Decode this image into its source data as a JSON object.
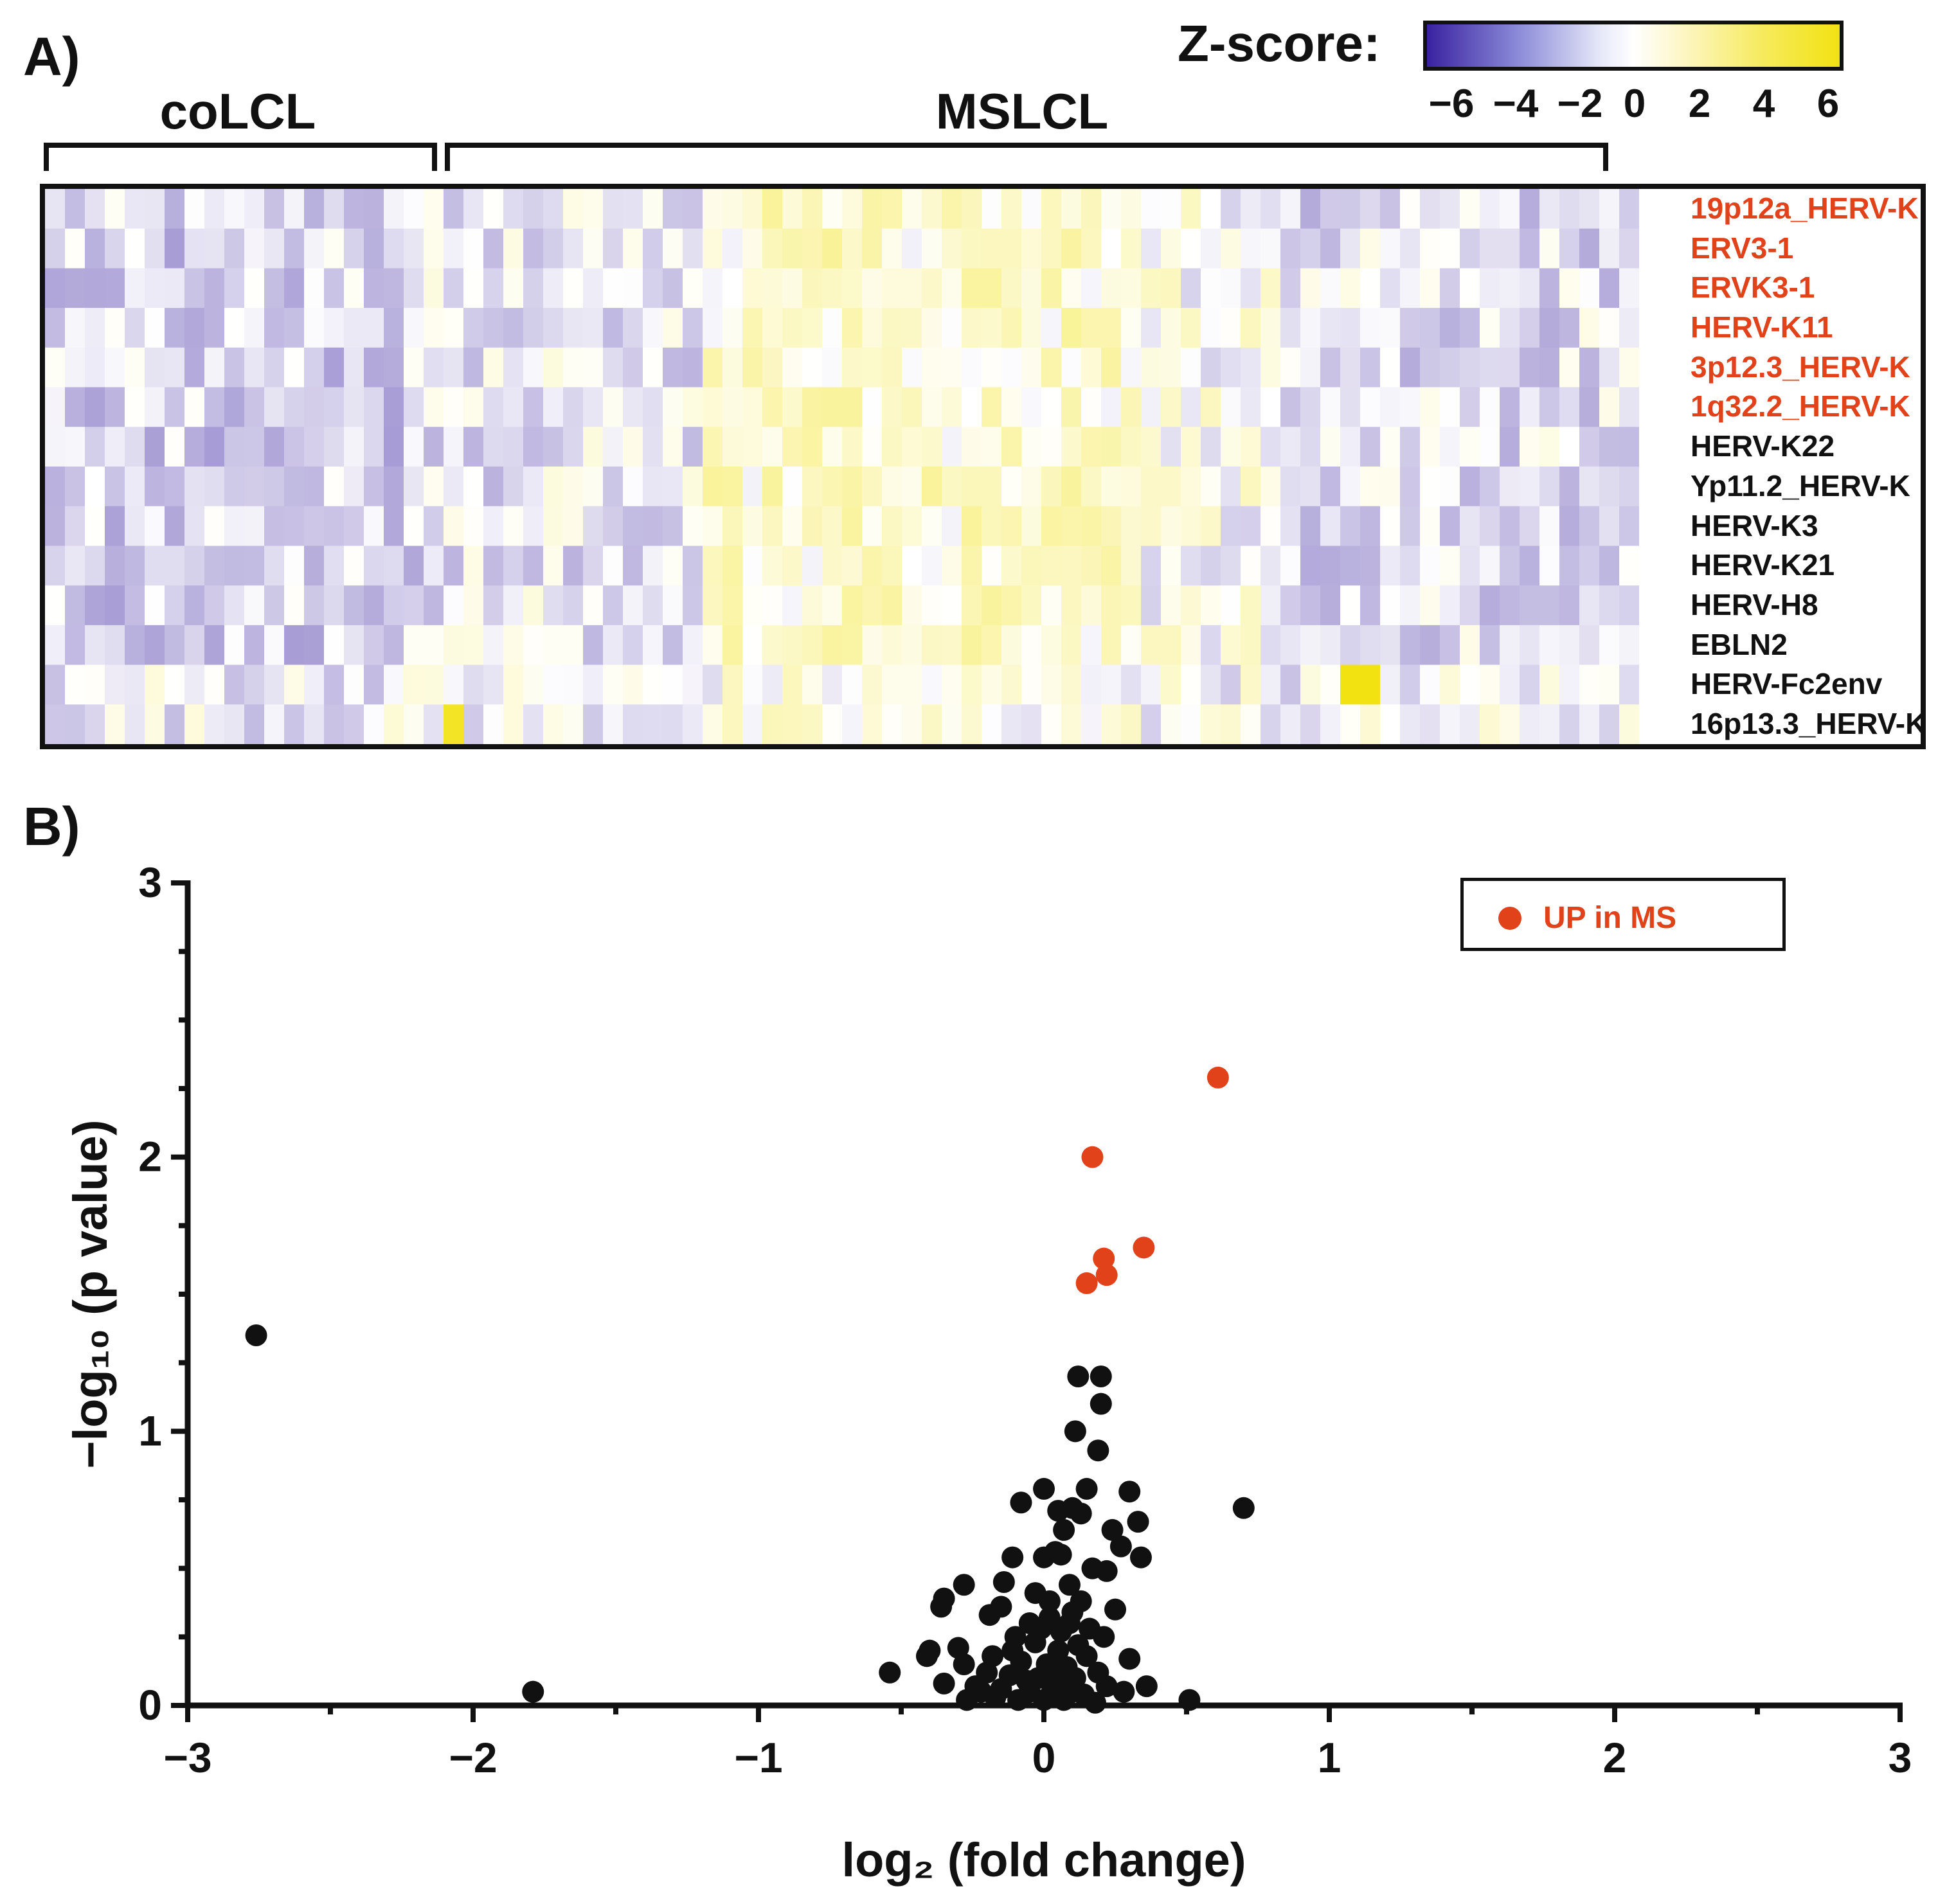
{
  "panel_a_label": "A)",
  "panel_b_label": "B)",
  "groups": {
    "control": "coLCL",
    "ms": "MSLCL"
  },
  "zscore": {
    "label": "Z-score:",
    "ticks": [
      "−6",
      "−4",
      "−2",
      "0",
      "2",
      "4",
      "6"
    ],
    "color_low": "#3a22a0",
    "color_mid": "#ffffff",
    "color_high": "#f2e212"
  },
  "colors": {
    "up": "#e2421a",
    "other": "#111111"
  },
  "chart_data": [
    {
      "type": "heatmap",
      "title": "",
      "colorbar_label": "Z-score:",
      "colorbar_range": [
        -6,
        6
      ],
      "group_labels": [
        "coLCL",
        "MSLCL"
      ],
      "n_columns": 80,
      "rows": [
        {
          "label": "19p12a_HERV-K",
          "highlight": true
        },
        {
          "label": "ERV3-1",
          "highlight": true
        },
        {
          "label": "ERVK3-1",
          "highlight": true
        },
        {
          "label": "HERV-K11",
          "highlight": true
        },
        {
          "label": "3p12.3_HERV-K",
          "highlight": true
        },
        {
          "label": "1q32.2_HERV-K",
          "highlight": true
        },
        {
          "label": "HERV-K22",
          "highlight": false
        },
        {
          "label": "Yp11.2_HERV-K",
          "highlight": false
        },
        {
          "label": "HERV-K3",
          "highlight": false
        },
        {
          "label": "HERV-K21",
          "highlight": false
        },
        {
          "label": "HERV-H8",
          "highlight": false
        },
        {
          "label": "EBLN2",
          "highlight": false
        },
        {
          "label": "HERV-Fc2env",
          "highlight": false
        },
        {
          "label": "16p13.3_HERV-K",
          "highlight": false
        }
      ]
    },
    {
      "type": "scatter",
      "title": "",
      "xlabel": "log₂ (fold change)",
      "ylabel": "−log₁₀ (p value)",
      "xlim": [
        -3,
        3
      ],
      "ylim": [
        0,
        3
      ],
      "xticks": [
        "−3",
        "−2",
        "−1",
        "0",
        "1",
        "2",
        "3"
      ],
      "yticks": [
        "0",
        "1",
        "2",
        "3"
      ],
      "legend": {
        "label": "UP in MS",
        "position": "top-right"
      },
      "series": [
        {
          "name": "UP in MS",
          "color": "#e2421a",
          "points": [
            [
              0.61,
              2.29
            ],
            [
              0.17,
              2.0
            ],
            [
              0.35,
              1.67
            ],
            [
              0.21,
              1.63
            ],
            [
              0.22,
              1.57
            ],
            [
              0.15,
              1.54
            ]
          ]
        },
        {
          "color": "#111111",
          "points": [
            [
              -2.76,
              1.35
            ],
            [
              -1.79,
              0.05
            ],
            [
              0.7,
              0.72
            ],
            [
              0.12,
              1.2
            ],
            [
              0.2,
              1.2
            ],
            [
              0.2,
              1.1
            ],
            [
              0.11,
              1.0
            ],
            [
              0.19,
              0.93
            ],
            [
              -0.08,
              0.74
            ],
            [
              0.0,
              0.79
            ],
            [
              0.15,
              0.79
            ],
            [
              0.3,
              0.78
            ],
            [
              0.05,
              0.71
            ],
            [
              0.1,
              0.72
            ],
            [
              0.13,
              0.7
            ],
            [
              0.33,
              0.67
            ],
            [
              0.24,
              0.64
            ],
            [
              0.07,
              0.64
            ],
            [
              0.04,
              0.56
            ],
            [
              0.27,
              0.58
            ],
            [
              -0.11,
              0.54
            ],
            [
              0.0,
              0.54
            ],
            [
              0.06,
              0.55
            ],
            [
              0.17,
              0.5
            ],
            [
              0.34,
              0.54
            ],
            [
              0.22,
              0.49
            ],
            [
              -0.14,
              0.45
            ],
            [
              0.09,
              0.44
            ],
            [
              -0.03,
              0.41
            ],
            [
              0.13,
              0.38
            ],
            [
              -0.35,
              0.39
            ],
            [
              -0.36,
              0.36
            ],
            [
              -0.28,
              0.44
            ],
            [
              -0.15,
              0.36
            ],
            [
              0.02,
              0.32
            ],
            [
              0.09,
              0.3
            ],
            [
              0.25,
              0.35
            ],
            [
              -0.19,
              0.33
            ],
            [
              -0.05,
              0.3
            ],
            [
              0.06,
              0.27
            ],
            [
              0.16,
              0.28
            ],
            [
              -0.4,
              0.2
            ],
            [
              -0.41,
              0.18
            ],
            [
              -0.1,
              0.25
            ],
            [
              -0.03,
              0.23
            ],
            [
              0.05,
              0.2
            ],
            [
              0.12,
              0.22
            ],
            [
              0.21,
              0.25
            ],
            [
              -0.3,
              0.21
            ],
            [
              -0.18,
              0.18
            ],
            [
              -0.08,
              0.16
            ],
            [
              0.01,
              0.15
            ],
            [
              0.08,
              0.14
            ],
            [
              0.15,
              0.18
            ],
            [
              0.3,
              0.17
            ],
            [
              -0.54,
              0.12
            ],
            [
              -0.28,
              0.15
            ],
            [
              -0.2,
              0.12
            ],
            [
              -0.12,
              0.11
            ],
            [
              -0.02,
              0.1
            ],
            [
              0.04,
              0.09
            ],
            [
              0.11,
              0.1
            ],
            [
              0.19,
              0.12
            ],
            [
              -0.35,
              0.08
            ],
            [
              -0.24,
              0.07
            ],
            [
              -0.15,
              0.06
            ],
            [
              -0.05,
              0.05
            ],
            [
              0.03,
              0.06
            ],
            [
              0.1,
              0.05
            ],
            [
              0.22,
              0.07
            ],
            [
              0.36,
              0.07
            ],
            [
              0.28,
              0.05
            ],
            [
              -0.27,
              0.02
            ],
            [
              -0.17,
              0.03
            ],
            [
              -0.09,
              0.02
            ],
            [
              0.0,
              0.02
            ],
            [
              0.07,
              0.02
            ],
            [
              0.18,
              0.01
            ],
            [
              0.51,
              0.02
            ],
            [
              -0.11,
              0.2
            ],
            [
              0.02,
              0.38
            ],
            [
              0.08,
              0.12
            ],
            [
              -0.06,
              0.09
            ],
            [
              0.14,
              0.04
            ],
            [
              -0.22,
              0.05
            ],
            [
              0.04,
              0.14
            ],
            [
              -0.01,
              0.28
            ],
            [
              0.1,
              0.34
            ]
          ]
        }
      ]
    }
  ]
}
